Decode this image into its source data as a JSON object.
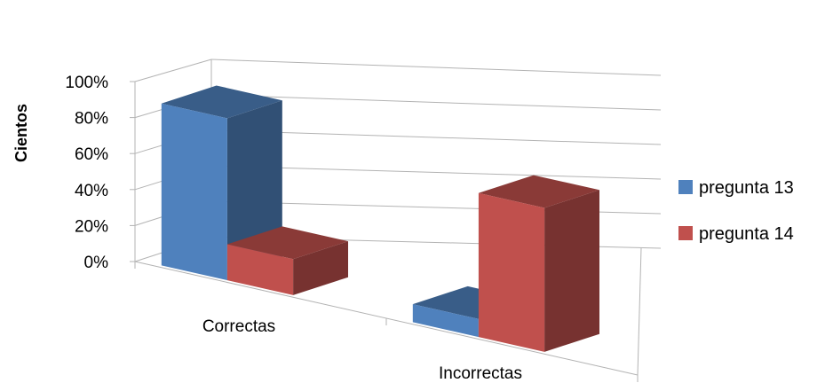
{
  "chart_data": {
    "type": "bar",
    "style": "3d-clustered-column",
    "categories": [
      "Correctas",
      "Incorrectas"
    ],
    "series": [
      {
        "name": "pregunta 13",
        "values": [
          90,
          10
        ],
        "color": "#4F81BD"
      },
      {
        "name": "pregunta 14",
        "values": [
          20,
          80
        ],
        "color": "#C0504D"
      }
    ],
    "ylabel": "Cientos",
    "ylim": [
      0,
      100
    ],
    "yticks": [
      "0%",
      "20%",
      "40%",
      "60%",
      "80%",
      "100%"
    ],
    "grid": true,
    "legend": "right"
  }
}
